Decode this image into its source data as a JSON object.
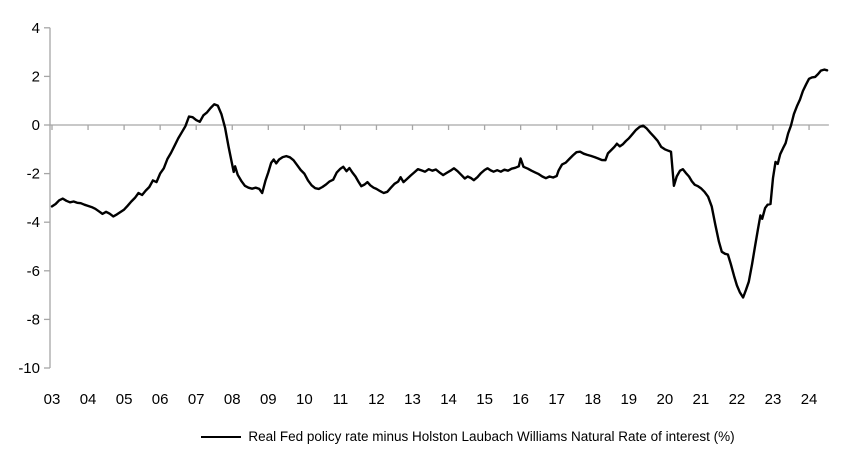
{
  "chart_data": {
    "type": "line",
    "title": "",
    "xlabel": "",
    "ylabel": "",
    "xlim": [
      2003,
      2024.55
    ],
    "ylim": [
      -10,
      4
    ],
    "grid": false,
    "zero_line_at": 0,
    "axis_color": "#a6a6a6",
    "line_color": "#000000",
    "legend_position": "bottom-center",
    "y_ticks": [
      4,
      2,
      0,
      -2,
      -4,
      -6,
      -8,
      -10
    ],
    "y_tick_labels": [
      "4",
      "2",
      "0",
      "-2",
      "-4",
      "-6",
      "-8",
      "-10"
    ],
    "x_tick_years": [
      2003,
      2004,
      2005,
      2006,
      2007,
      2008,
      2009,
      2010,
      2011,
      2012,
      2013,
      2014,
      2015,
      2016,
      2017,
      2018,
      2019,
      2020,
      2021,
      2022,
      2023,
      2024
    ],
    "x_tick_labels": [
      "03",
      "04",
      "05",
      "06",
      "07",
      "08",
      "09",
      "10",
      "11",
      "12",
      "13",
      "14",
      "15",
      "16",
      "17",
      "18",
      "19",
      "20",
      "21",
      "22",
      "23",
      "24"
    ],
    "series": [
      {
        "name": "Real Fed policy rate minus Holston Laubach Williams Natural Rate of interest (%)",
        "color": "#000000",
        "points": [
          [
            2003.0,
            -3.35
          ],
          [
            2003.1,
            -3.25
          ],
          [
            2003.2,
            -3.1
          ],
          [
            2003.3,
            -3.03
          ],
          [
            2003.4,
            -3.12
          ],
          [
            2003.5,
            -3.18
          ],
          [
            2003.6,
            -3.15
          ],
          [
            2003.7,
            -3.2
          ],
          [
            2003.8,
            -3.22
          ],
          [
            2003.9,
            -3.28
          ],
          [
            2004.0,
            -3.33
          ],
          [
            2004.1,
            -3.38
          ],
          [
            2004.2,
            -3.45
          ],
          [
            2004.3,
            -3.55
          ],
          [
            2004.4,
            -3.66
          ],
          [
            2004.5,
            -3.57
          ],
          [
            2004.6,
            -3.65
          ],
          [
            2004.7,
            -3.76
          ],
          [
            2004.8,
            -3.68
          ],
          [
            2004.9,
            -3.58
          ],
          [
            2005.0,
            -3.48
          ],
          [
            2005.1,
            -3.32
          ],
          [
            2005.2,
            -3.15
          ],
          [
            2005.3,
            -3.0
          ],
          [
            2005.4,
            -2.8
          ],
          [
            2005.5,
            -2.88
          ],
          [
            2005.6,
            -2.7
          ],
          [
            2005.7,
            -2.55
          ],
          [
            2005.8,
            -2.28
          ],
          [
            2005.9,
            -2.35
          ],
          [
            2006.0,
            -2.0
          ],
          [
            2006.1,
            -1.78
          ],
          [
            2006.2,
            -1.4
          ],
          [
            2006.3,
            -1.15
          ],
          [
            2006.4,
            -0.85
          ],
          [
            2006.5,
            -0.55
          ],
          [
            2006.6,
            -0.3
          ],
          [
            2006.7,
            -0.05
          ],
          [
            2006.8,
            0.35
          ],
          [
            2006.9,
            0.32
          ],
          [
            2007.0,
            0.2
          ],
          [
            2007.1,
            0.13
          ],
          [
            2007.2,
            0.4
          ],
          [
            2007.3,
            0.52
          ],
          [
            2007.4,
            0.7
          ],
          [
            2007.5,
            0.85
          ],
          [
            2007.6,
            0.8
          ],
          [
            2007.7,
            0.45
          ],
          [
            2007.8,
            -0.1
          ],
          [
            2007.9,
            -0.9
          ],
          [
            2008.0,
            -1.65
          ],
          [
            2008.04,
            -1.93
          ],
          [
            2008.08,
            -1.7
          ],
          [
            2008.15,
            -2.05
          ],
          [
            2008.25,
            -2.3
          ],
          [
            2008.35,
            -2.5
          ],
          [
            2008.45,
            -2.58
          ],
          [
            2008.55,
            -2.62
          ],
          [
            2008.65,
            -2.58
          ],
          [
            2008.75,
            -2.63
          ],
          [
            2008.83,
            -2.8
          ],
          [
            2008.92,
            -2.3
          ],
          [
            2009.0,
            -1.95
          ],
          [
            2009.08,
            -1.55
          ],
          [
            2009.15,
            -1.42
          ],
          [
            2009.22,
            -1.58
          ],
          [
            2009.3,
            -1.42
          ],
          [
            2009.4,
            -1.32
          ],
          [
            2009.5,
            -1.28
          ],
          [
            2009.6,
            -1.33
          ],
          [
            2009.7,
            -1.45
          ],
          [
            2009.8,
            -1.65
          ],
          [
            2009.9,
            -1.85
          ],
          [
            2010.0,
            -2.0
          ],
          [
            2010.1,
            -2.28
          ],
          [
            2010.2,
            -2.48
          ],
          [
            2010.3,
            -2.6
          ],
          [
            2010.4,
            -2.63
          ],
          [
            2010.5,
            -2.55
          ],
          [
            2010.6,
            -2.45
          ],
          [
            2010.7,
            -2.32
          ],
          [
            2010.8,
            -2.25
          ],
          [
            2010.9,
            -1.95
          ],
          [
            2011.0,
            -1.8
          ],
          [
            2011.08,
            -1.72
          ],
          [
            2011.17,
            -1.9
          ],
          [
            2011.25,
            -1.77
          ],
          [
            2011.33,
            -1.95
          ],
          [
            2011.42,
            -2.12
          ],
          [
            2011.5,
            -2.33
          ],
          [
            2011.58,
            -2.52
          ],
          [
            2011.67,
            -2.45
          ],
          [
            2011.75,
            -2.35
          ],
          [
            2011.83,
            -2.48
          ],
          [
            2011.92,
            -2.58
          ],
          [
            2012.0,
            -2.63
          ],
          [
            2012.1,
            -2.72
          ],
          [
            2012.2,
            -2.8
          ],
          [
            2012.3,
            -2.75
          ],
          [
            2012.4,
            -2.58
          ],
          [
            2012.5,
            -2.42
          ],
          [
            2012.6,
            -2.33
          ],
          [
            2012.67,
            -2.15
          ],
          [
            2012.75,
            -2.35
          ],
          [
            2012.85,
            -2.22
          ],
          [
            2012.95,
            -2.08
          ],
          [
            2013.05,
            -1.95
          ],
          [
            2013.15,
            -1.82
          ],
          [
            2013.25,
            -1.87
          ],
          [
            2013.35,
            -1.92
          ],
          [
            2013.45,
            -1.82
          ],
          [
            2013.55,
            -1.88
          ],
          [
            2013.65,
            -1.83
          ],
          [
            2013.75,
            -1.95
          ],
          [
            2013.85,
            -2.06
          ],
          [
            2013.95,
            -1.97
          ],
          [
            2014.05,
            -1.88
          ],
          [
            2014.15,
            -1.78
          ],
          [
            2014.25,
            -1.9
          ],
          [
            2014.35,
            -2.05
          ],
          [
            2014.45,
            -2.2
          ],
          [
            2014.53,
            -2.12
          ],
          [
            2014.62,
            -2.18
          ],
          [
            2014.7,
            -2.27
          ],
          [
            2014.8,
            -2.15
          ],
          [
            2014.9,
            -1.98
          ],
          [
            2015.0,
            -1.85
          ],
          [
            2015.08,
            -1.78
          ],
          [
            2015.17,
            -1.87
          ],
          [
            2015.25,
            -1.92
          ],
          [
            2015.35,
            -1.86
          ],
          [
            2015.45,
            -1.92
          ],
          [
            2015.55,
            -1.84
          ],
          [
            2015.65,
            -1.88
          ],
          [
            2015.75,
            -1.8
          ],
          [
            2015.85,
            -1.76
          ],
          [
            2015.95,
            -1.7
          ],
          [
            2016.0,
            -1.38
          ],
          [
            2016.08,
            -1.72
          ],
          [
            2016.2,
            -1.8
          ],
          [
            2016.3,
            -1.88
          ],
          [
            2016.4,
            -1.95
          ],
          [
            2016.5,
            -2.02
          ],
          [
            2016.6,
            -2.12
          ],
          [
            2016.7,
            -2.19
          ],
          [
            2016.8,
            -2.12
          ],
          [
            2016.9,
            -2.16
          ],
          [
            2017.0,
            -2.1
          ],
          [
            2017.05,
            -1.88
          ],
          [
            2017.15,
            -1.62
          ],
          [
            2017.25,
            -1.55
          ],
          [
            2017.35,
            -1.4
          ],
          [
            2017.45,
            -1.25
          ],
          [
            2017.55,
            -1.12
          ],
          [
            2017.65,
            -1.1
          ],
          [
            2017.75,
            -1.18
          ],
          [
            2017.85,
            -1.23
          ],
          [
            2017.95,
            -1.27
          ],
          [
            2018.05,
            -1.32
          ],
          [
            2018.15,
            -1.38
          ],
          [
            2018.25,
            -1.44
          ],
          [
            2018.35,
            -1.45
          ],
          [
            2018.42,
            -1.17
          ],
          [
            2018.5,
            -1.05
          ],
          [
            2018.6,
            -0.9
          ],
          [
            2018.67,
            -0.77
          ],
          [
            2018.75,
            -0.88
          ],
          [
            2018.83,
            -0.8
          ],
          [
            2018.92,
            -0.66
          ],
          [
            2019.0,
            -0.55
          ],
          [
            2019.1,
            -0.38
          ],
          [
            2019.2,
            -0.2
          ],
          [
            2019.3,
            -0.08
          ],
          [
            2019.4,
            -0.03
          ],
          [
            2019.5,
            -0.15
          ],
          [
            2019.6,
            -0.32
          ],
          [
            2019.7,
            -0.48
          ],
          [
            2019.8,
            -0.65
          ],
          [
            2019.9,
            -0.9
          ],
          [
            2020.0,
            -1.0
          ],
          [
            2020.1,
            -1.06
          ],
          [
            2020.17,
            -1.1
          ],
          [
            2020.25,
            -2.5
          ],
          [
            2020.33,
            -2.12
          ],
          [
            2020.42,
            -1.88
          ],
          [
            2020.5,
            -1.82
          ],
          [
            2020.58,
            -1.97
          ],
          [
            2020.67,
            -2.12
          ],
          [
            2020.75,
            -2.32
          ],
          [
            2020.83,
            -2.46
          ],
          [
            2020.92,
            -2.52
          ],
          [
            2021.0,
            -2.6
          ],
          [
            2021.1,
            -2.75
          ],
          [
            2021.2,
            -2.95
          ],
          [
            2021.3,
            -3.35
          ],
          [
            2021.4,
            -4.1
          ],
          [
            2021.5,
            -4.8
          ],
          [
            2021.58,
            -5.22
          ],
          [
            2021.67,
            -5.3
          ],
          [
            2021.75,
            -5.33
          ],
          [
            2021.83,
            -5.72
          ],
          [
            2021.92,
            -6.22
          ],
          [
            2022.0,
            -6.6
          ],
          [
            2022.08,
            -6.88
          ],
          [
            2022.17,
            -7.1
          ],
          [
            2022.25,
            -6.78
          ],
          [
            2022.33,
            -6.45
          ],
          [
            2022.42,
            -5.72
          ],
          [
            2022.5,
            -5.0
          ],
          [
            2022.58,
            -4.3
          ],
          [
            2022.65,
            -3.72
          ],
          [
            2022.7,
            -3.86
          ],
          [
            2022.78,
            -3.42
          ],
          [
            2022.85,
            -3.28
          ],
          [
            2022.93,
            -3.25
          ],
          [
            2023.0,
            -2.18
          ],
          [
            2023.07,
            -1.52
          ],
          [
            2023.13,
            -1.6
          ],
          [
            2023.2,
            -1.2
          ],
          [
            2023.28,
            -0.95
          ],
          [
            2023.35,
            -0.75
          ],
          [
            2023.42,
            -0.35
          ],
          [
            2023.5,
            -0.02
          ],
          [
            2023.58,
            0.45
          ],
          [
            2023.67,
            0.8
          ],
          [
            2023.75,
            1.05
          ],
          [
            2023.83,
            1.4
          ],
          [
            2023.92,
            1.68
          ],
          [
            2024.0,
            1.9
          ],
          [
            2024.08,
            1.96
          ],
          [
            2024.17,
            1.98
          ],
          [
            2024.25,
            2.1
          ],
          [
            2024.33,
            2.24
          ],
          [
            2024.42,
            2.28
          ],
          [
            2024.5,
            2.25
          ]
        ]
      }
    ]
  },
  "legend": {
    "label": "Real Fed policy rate minus Holston Laubach Williams Natural Rate of interest (%)"
  }
}
